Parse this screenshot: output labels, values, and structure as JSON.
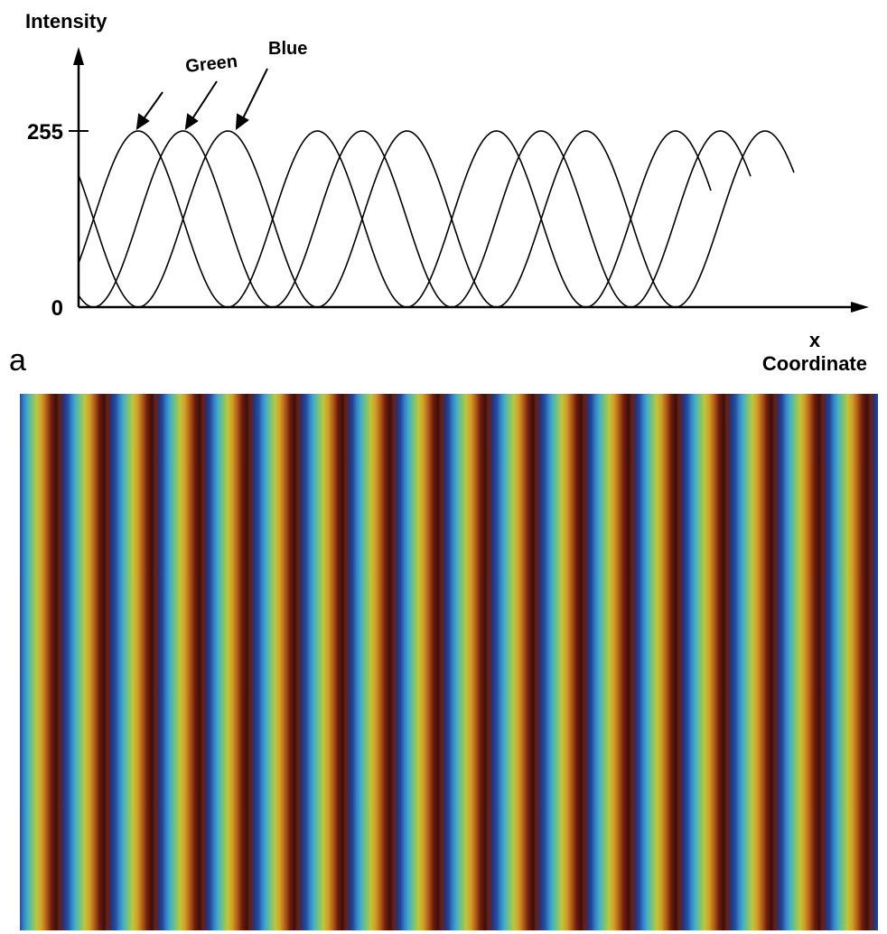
{
  "figure": {
    "panel_label": "a",
    "ylabel": "Intensity",
    "xlabel_line1": "x",
    "xlabel_line2": "Coordinate",
    "y_ticks": [
      "255",
      "0"
    ],
    "annotations": [
      "Green",
      "Blue"
    ]
  },
  "chart_data": {
    "type": "line",
    "xlabel": "x Coordinate",
    "ylabel": "Intensity",
    "ylim": [
      0,
      255
    ],
    "yticks": [
      0,
      255
    ],
    "x_unit_note": "",
    "x": [
      0,
      0.5,
      1,
      1.5,
      2,
      2.5,
      3,
      3.5,
      4,
      4.5,
      5,
      5.5,
      6,
      6.5,
      7,
      7.5,
      8,
      8.5,
      9,
      9.5,
      10,
      10.5,
      11,
      11.5,
      12,
      12.5,
      13,
      13.5,
      14,
      14.5,
      15,
      15.5,
      16,
      16.5,
      17,
      17.5,
      18,
      18.5,
      19,
      19.5,
      20,
      20.5,
      21,
      21.5,
      22,
      22.5,
      23,
      23.5,
      24
    ],
    "series": [
      {
        "name": "",
        "period": 6,
        "phase": 2,
        "values": [
          128,
          191,
          237,
          255,
          237,
          191,
          128,
          64,
          18,
          0,
          18,
          64,
          128,
          191,
          237,
          255,
          237,
          191,
          128,
          64,
          18,
          0,
          18,
          64,
          128,
          191,
          237,
          255,
          237,
          191,
          128,
          64,
          18,
          0,
          18,
          64,
          128,
          191,
          237,
          255,
          237,
          191,
          128,
          64,
          18,
          0,
          18,
          64,
          128
        ]
      },
      {
        "name": "Green",
        "period": 6,
        "phase": 3.5,
        "values": [
          0,
          18,
          64,
          128,
          191,
          237,
          255,
          237,
          191,
          128,
          64,
          18,
          0,
          18,
          64,
          128,
          191,
          237,
          255,
          237,
          191,
          128,
          64,
          18,
          0,
          18,
          64,
          128,
          191,
          237,
          255,
          237,
          191,
          128,
          64,
          18,
          0,
          18,
          64,
          128,
          191,
          237,
          255,
          237,
          191,
          128,
          64,
          18,
          0
        ]
      },
      {
        "name": "Blue",
        "period": 6,
        "phase": 5,
        "values": [
          128,
          64,
          18,
          0,
          18,
          64,
          128,
          191,
          237,
          255,
          237,
          191,
          128,
          64,
          18,
          0,
          18,
          64,
          128,
          191,
          237,
          255,
          237,
          191,
          128,
          64,
          18,
          0,
          18,
          64,
          128,
          191,
          237,
          255,
          237,
          191,
          128,
          64,
          18,
          0,
          18,
          64,
          128,
          191,
          237,
          255,
          237,
          191,
          128
        ]
      }
    ],
    "grid": false
  },
  "fringe_pattern": {
    "stripe_count": 18,
    "colors": [
      "#1f4fa0",
      "#2f86c8",
      "#47b0b8",
      "#7ec26a",
      "#c7c335",
      "#d69a2c",
      "#b25a1e",
      "#6b1e12",
      "#3b0f0c",
      "#22317c"
    ]
  }
}
